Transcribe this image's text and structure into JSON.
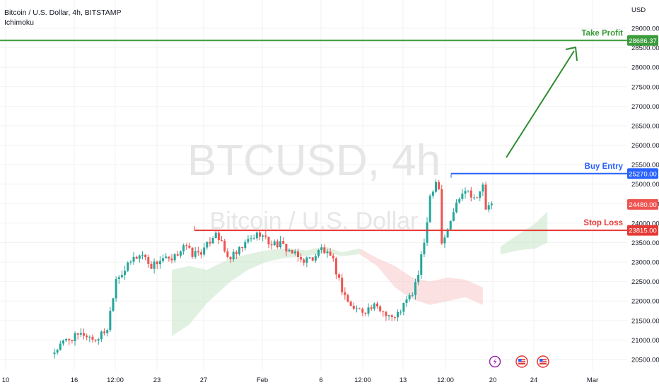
{
  "header": {
    "symbol_line": "Bitcoin / U.S. Dollar, 4h, BITSTAMP",
    "indicator": "Ichimoku"
  },
  "watermark": {
    "ticker": "BTCUSD, 4h",
    "name": "Bitcoin / U.S. Dollar"
  },
  "axis": {
    "currency": "USD",
    "y_ticks": [
      "29000.00",
      "28500.00",
      "28000.00",
      "27500.00",
      "27000.00",
      "26500.00",
      "26000.00",
      "25500.00",
      "25000.00",
      "24500.00",
      "24000.00",
      "23500.00",
      "23000.00",
      "22500.00",
      "22000.00",
      "21500.00",
      "21000.00",
      "20500.00"
    ],
    "x_ticks": [
      "10",
      "16",
      "12:00",
      "23",
      "27",
      "Feb",
      "6",
      "12:00",
      "13",
      "12:00",
      "20",
      "24",
      "Mar"
    ]
  },
  "levels": {
    "take_profit": {
      "label": "Take Profit",
      "price": "28686.37",
      "value": 28686.37,
      "color": "#3a9c3a"
    },
    "buy_entry": {
      "label": "Buy Entry",
      "price": "25270.00",
      "value": 25270.0,
      "color": "#2962ff"
    },
    "stop_loss": {
      "label": "Stop Loss",
      "price": "23815.00",
      "value": 23815.0,
      "color": "#e53935"
    },
    "last_price": {
      "price": "24480.00",
      "value": 24480.0,
      "color": "#ef5350"
    }
  },
  "colors": {
    "up": "#26a69a",
    "down": "#ef5350",
    "cloud_bull": "#c8e6c9",
    "cloud_bear": "#f8c8c8",
    "grid": "#f2f2f2"
  },
  "icons": [
    "lightning-event-icon",
    "us-flag-event-icon",
    "us-flag-event-icon"
  ],
  "chart_data": {
    "type": "candlestick",
    "symbol": "BTCUSD",
    "timeframe": "4h",
    "ylim": [
      20300,
      29600
    ],
    "anchors": [
      {
        "t": 0,
        "v": 20700
      },
      {
        "t": 4,
        "v": 21000
      },
      {
        "t": 10,
        "v": 21150
      },
      {
        "t": 14,
        "v": 21000
      },
      {
        "t": 18,
        "v": 21300
      },
      {
        "t": 21,
        "v": 22600
      },
      {
        "t": 24,
        "v": 22800
      },
      {
        "t": 27,
        "v": 23100
      },
      {
        "t": 30,
        "v": 23200
      },
      {
        "t": 33,
        "v": 22900
      },
      {
        "t": 37,
        "v": 23100
      },
      {
        "t": 40,
        "v": 23000
      },
      {
        "t": 44,
        "v": 23450
      },
      {
        "t": 47,
        "v": 23200
      },
      {
        "t": 51,
        "v": 23300
      },
      {
        "t": 55,
        "v": 23800
      },
      {
        "t": 57,
        "v": 23450
      },
      {
        "t": 59,
        "v": 23100
      },
      {
        "t": 62,
        "v": 23200
      },
      {
        "t": 66,
        "v": 23550
      },
      {
        "t": 70,
        "v": 23750
      },
      {
        "t": 73,
        "v": 23500
      },
      {
        "t": 77,
        "v": 23450
      },
      {
        "t": 80,
        "v": 23300
      },
      {
        "t": 84,
        "v": 23050
      },
      {
        "t": 88,
        "v": 23100
      },
      {
        "t": 91,
        "v": 23350
      },
      {
        "t": 95,
        "v": 23000
      },
      {
        "t": 98,
        "v": 22300
      },
      {
        "t": 101,
        "v": 21850
      },
      {
        "t": 105,
        "v": 21750
      },
      {
        "t": 109,
        "v": 21850
      },
      {
        "t": 113,
        "v": 21700
      },
      {
        "t": 116,
        "v": 21550
      },
      {
        "t": 119,
        "v": 21900
      },
      {
        "t": 122,
        "v": 22200
      },
      {
        "t": 124,
        "v": 22700
      },
      {
        "t": 126,
        "v": 23500
      },
      {
        "t": 128,
        "v": 24700
      },
      {
        "t": 130,
        "v": 25100
      },
      {
        "t": 131,
        "v": 24900
      },
      {
        "t": 132,
        "v": 23500
      },
      {
        "t": 134,
        "v": 23800
      },
      {
        "t": 136,
        "v": 24300
      },
      {
        "t": 138,
        "v": 24700
      },
      {
        "t": 140,
        "v": 24900
      },
      {
        "t": 142,
        "v": 24750
      },
      {
        "t": 144,
        "v": 24600
      },
      {
        "t": 146,
        "v": 25000
      },
      {
        "t": 147,
        "v": 24300
      },
      {
        "t": 149,
        "v": 24480
      }
    ],
    "candle_count": 150,
    "cloud": [
      {
        "t": 40,
        "top": 22800,
        "bot": 21100
      },
      {
        "t": 46,
        "top": 22900,
        "bot": 21400
      },
      {
        "t": 52,
        "top": 22800,
        "bot": 21950
      },
      {
        "t": 60,
        "top": 23100,
        "bot": 22500
      },
      {
        "t": 66,
        "top": 23200,
        "bot": 22800
      },
      {
        "t": 72,
        "top": 23300,
        "bot": 23000
      },
      {
        "t": 78,
        "top": 23350,
        "bot": 23100
      },
      {
        "t": 86,
        "top": 23300,
        "bot": 23150
      },
      {
        "t": 92,
        "top": 23400,
        "bot": 23250
      },
      {
        "t": 98,
        "top": 23250,
        "bot": 23150
      },
      {
        "t": 104,
        "top": 23350,
        "bot": 23200
      },
      {
        "t": 110,
        "top": 23100,
        "bot": 22900
      },
      {
        "t": 116,
        "top": 22900,
        "bot": 22350
      },
      {
        "t": 122,
        "top": 22600,
        "bot": 22050
      },
      {
        "t": 128,
        "top": 22500,
        "bot": 21900
      },
      {
        "t": 134,
        "top": 22600,
        "bot": 22000
      },
      {
        "t": 140,
        "top": 22550,
        "bot": 22100
      },
      {
        "t": 146,
        "top": 22350,
        "bot": 21900
      },
      {
        "t": 152,
        "top": 23400,
        "bot": 23200
      },
      {
        "t": 158,
        "top": 23700,
        "bot": 23300
      },
      {
        "t": 164,
        "top": 24000,
        "bot": 23350
      },
      {
        "t": 168,
        "top": 24300,
        "bot": 23500
      }
    ]
  }
}
